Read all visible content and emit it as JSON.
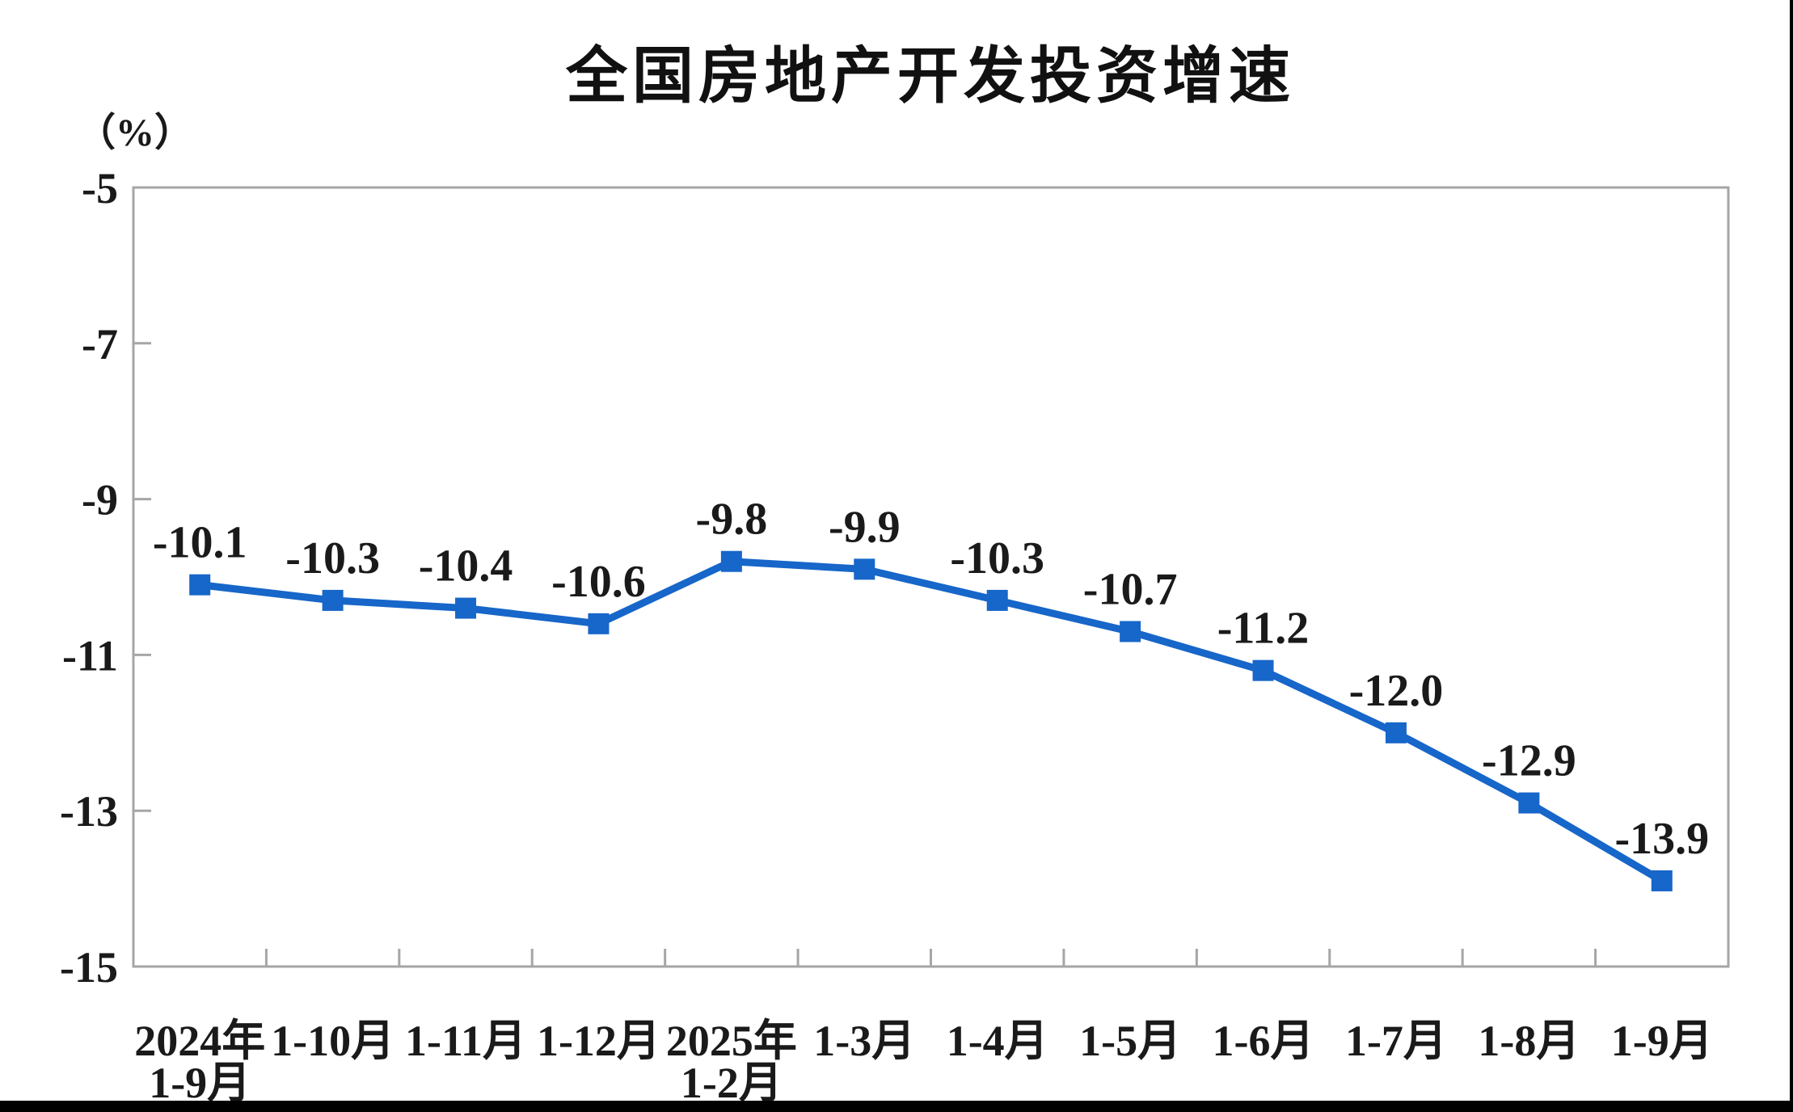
{
  "page": {
    "background_color": "#ffffff",
    "bottom_border_color": "#000000",
    "right_border_color": "#000000"
  },
  "chart_data": {
    "type": "line",
    "title": "全国房地产开发投资增速",
    "unit_label": "（%）",
    "xlabel": "",
    "ylabel": "（%）",
    "categories": [
      [
        "2024年",
        "1-9月"
      ],
      [
        "1-10月"
      ],
      [
        "1-11月"
      ],
      [
        "1-12月"
      ],
      [
        "2025年",
        "1-2月"
      ],
      [
        "1-3月"
      ],
      [
        "1-4月"
      ],
      [
        "1-5月"
      ],
      [
        "1-6月"
      ],
      [
        "1-7月"
      ],
      [
        "1-8月"
      ],
      [
        "1-9月"
      ]
    ],
    "values": [
      -10.1,
      -10.3,
      -10.4,
      -10.6,
      -9.8,
      -9.9,
      -10.3,
      -10.7,
      -11.2,
      -12.0,
      -12.9,
      -13.9
    ],
    "data_labels": [
      "-10.1",
      "-10.3",
      "-10.4",
      "-10.6",
      "-9.8",
      "-9.9",
      "-10.3",
      "-10.7",
      "-11.2",
      "-12.0",
      "-12.9",
      "-13.9"
    ],
    "y_tick_labels": [
      "-5",
      "-7",
      "-9",
      "-11",
      "-13",
      "-15"
    ],
    "y_tick_values": [
      -5,
      -7,
      -9,
      -11,
      -13,
      -15
    ],
    "ylim": [
      -15,
      -5
    ],
    "grid": false,
    "legend_position": "none",
    "marker": "square",
    "line_color": "#1766c9",
    "axis_color": "#a6a6a6",
    "text_color": "#1a1a1a",
    "title_color": "#111111"
  }
}
